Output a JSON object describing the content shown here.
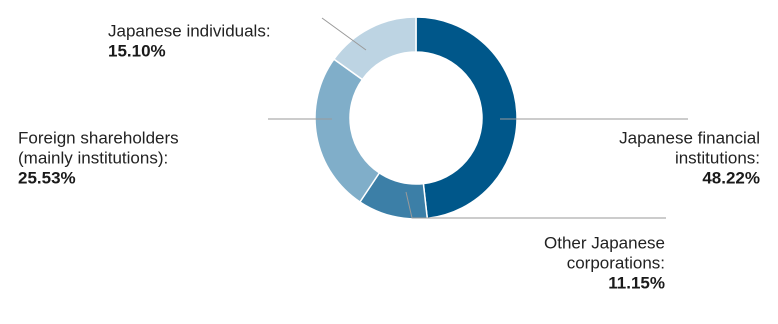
{
  "chart_data": {
    "type": "donut",
    "categories": [
      [
        "Japanese financial",
        "institutions:"
      ],
      [
        "Other Japanese",
        "corporations:"
      ],
      [
        "Foreign shareholders",
        "(mainly institutions):"
      ],
      [
        "Japanese individuals:"
      ]
    ],
    "values": [
      48.22,
      11.15,
      25.53,
      15.1
    ],
    "value_labels": [
      "48.22%",
      "11.15%",
      "25.53%",
      "15.10%"
    ],
    "colors": [
      "#00578a",
      "#3c7fa7",
      "#80aec9",
      "#bdd4e3"
    ]
  }
}
